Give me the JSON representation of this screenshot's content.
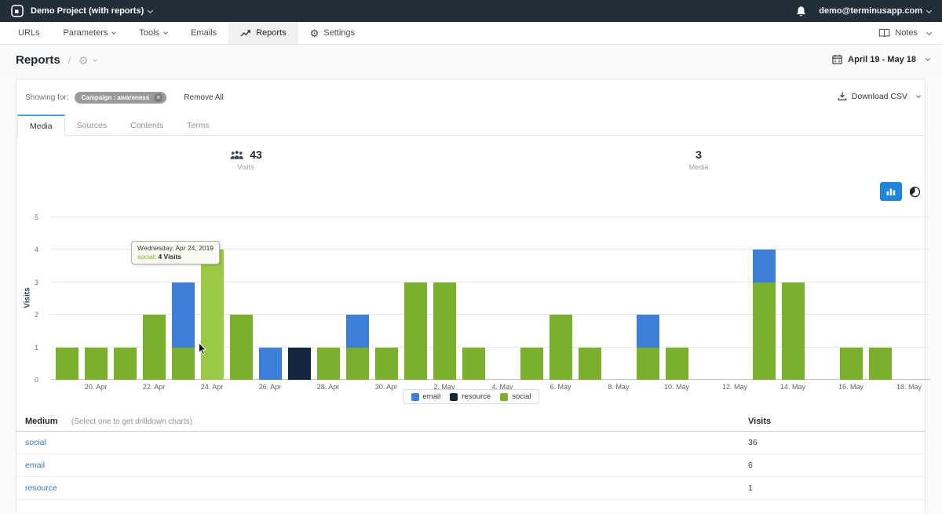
{
  "topbar": {
    "project_name": "Demo Project (with reports)",
    "account_email": "demo@terminusapp.com",
    "icons": [
      "app-logo-icon",
      "notifications-bell-icon"
    ]
  },
  "nav": {
    "items": [
      {
        "label": "URLs",
        "dropdown": false,
        "icon": null,
        "active": false
      },
      {
        "label": "Parameters",
        "dropdown": true,
        "icon": null,
        "active": false
      },
      {
        "label": "Tools",
        "dropdown": true,
        "icon": null,
        "active": false
      },
      {
        "label": "Emails",
        "dropdown": false,
        "icon": null,
        "active": false
      },
      {
        "label": "Reports",
        "dropdown": false,
        "icon": "line-chart-icon",
        "active": true
      },
      {
        "label": "Settings",
        "dropdown": false,
        "icon": "gear-icon",
        "active": false
      }
    ],
    "notes_label": "Notes",
    "notes_icon": "book-icon"
  },
  "page": {
    "title": "Reports",
    "breadcrumb_separator": "/",
    "settings_dropdown_icon": "gear-icon",
    "date_range": "April 19 - May 18",
    "date_range_icon": "calendar-icon"
  },
  "filters": {
    "showing_for_label": "Showing for:",
    "tags": [
      {
        "label": "Campaign : awareness",
        "remove_glyph": "×"
      }
    ],
    "remove_all_label": "Remove All",
    "download_csv_label": "Download CSV",
    "download_icon": "download-icon"
  },
  "tabs": [
    {
      "label": "Media",
      "active": true
    },
    {
      "label": "Sources",
      "active": false
    },
    {
      "label": "Contents",
      "active": false
    },
    {
      "label": "Terms",
      "active": false
    }
  ],
  "stats": [
    {
      "value": "43",
      "label": "Visits",
      "icon": "visitors-icon"
    },
    {
      "value": "3",
      "label": "Media",
      "icon": null
    }
  ],
  "chart_controls": {
    "bar_button_icon": "column-chart-icon",
    "bar_button_active": true,
    "pie_button_icon": "pie-chart-icon"
  },
  "tooltip": {
    "date": "Wednesday, Apr 24, 2019",
    "series": "social",
    "separator": ": ",
    "value": "4 Visits"
  },
  "chart_data": {
    "type": "bar",
    "stacked": true,
    "title": "",
    "xlabel": "",
    "ylabel": "Visits",
    "ylim": [
      0,
      5
    ],
    "yticks": [
      0,
      1,
      2,
      3,
      4,
      5
    ],
    "grid": true,
    "legend_position": "bottom",
    "x_tick_labels": [
      "20. Apr",
      "22. Apr",
      "24. Apr",
      "26. Apr",
      "28. Apr",
      "30. Apr",
      "2. May",
      "4. May",
      "6. May",
      "8. May",
      "10. May",
      "12. May",
      "14. May",
      "16. May",
      "18. May"
    ],
    "legend": [
      {
        "name": "email",
        "color": "#3b7fd8"
      },
      {
        "name": "resource",
        "color": "#13263f"
      },
      {
        "name": "social",
        "color": "#7ab02c"
      }
    ],
    "highlighted_day": "Apr 24",
    "days": [
      {
        "date": "Apr 19",
        "social": 1,
        "email": 0,
        "resource": 0
      },
      {
        "date": "Apr 20",
        "social": 1,
        "email": 0,
        "resource": 0
      },
      {
        "date": "Apr 21",
        "social": 1,
        "email": 0,
        "resource": 0
      },
      {
        "date": "Apr 22",
        "social": 2,
        "email": 0,
        "resource": 0
      },
      {
        "date": "Apr 23",
        "social": 1,
        "email": 2,
        "resource": 0
      },
      {
        "date": "Apr 24",
        "social": 4,
        "email": 0,
        "resource": 0
      },
      {
        "date": "Apr 25",
        "social": 2,
        "email": 0,
        "resource": 0
      },
      {
        "date": "Apr 26",
        "social": 0,
        "email": 1,
        "resource": 0
      },
      {
        "date": "Apr 27",
        "social": 0,
        "email": 0,
        "resource": 1
      },
      {
        "date": "Apr 28",
        "social": 1,
        "email": 0,
        "resource": 0
      },
      {
        "date": "Apr 29",
        "social": 1,
        "email": 1,
        "resource": 0
      },
      {
        "date": "Apr 30",
        "social": 1,
        "email": 0,
        "resource": 0
      },
      {
        "date": "May 1",
        "social": 3,
        "email": 0,
        "resource": 0
      },
      {
        "date": "May 2",
        "social": 3,
        "email": 0,
        "resource": 0
      },
      {
        "date": "May 3",
        "social": 1,
        "email": 0,
        "resource": 0
      },
      {
        "date": "May 4",
        "social": 0,
        "email": 0,
        "resource": 0
      },
      {
        "date": "May 5",
        "social": 1,
        "email": 0,
        "resource": 0
      },
      {
        "date": "May 6",
        "social": 2,
        "email": 0,
        "resource": 0
      },
      {
        "date": "May 7",
        "social": 1,
        "email": 0,
        "resource": 0
      },
      {
        "date": "May 8",
        "social": 0,
        "email": 0,
        "resource": 0
      },
      {
        "date": "May 9",
        "social": 1,
        "email": 1,
        "resource": 0
      },
      {
        "date": "May 10",
        "social": 1,
        "email": 0,
        "resource": 0
      },
      {
        "date": "May 11",
        "social": 0,
        "email": 0,
        "resource": 0
      },
      {
        "date": "May 12",
        "social": 0,
        "email": 0,
        "resource": 0
      },
      {
        "date": "May 13",
        "social": 3,
        "email": 1,
        "resource": 0
      },
      {
        "date": "May 14",
        "social": 3,
        "email": 0,
        "resource": 0
      },
      {
        "date": "May 15",
        "social": 0,
        "email": 0,
        "resource": 0
      },
      {
        "date": "May 16",
        "social": 1,
        "email": 0,
        "resource": 0
      },
      {
        "date": "May 17",
        "social": 1,
        "email": 0,
        "resource": 0
      },
      {
        "date": "May 18",
        "social": 0,
        "email": 0,
        "resource": 0
      }
    ]
  },
  "table": {
    "header": {
      "medium": "Medium",
      "hint": "(Select one to get drilldown charts)",
      "visits": "Visits"
    },
    "rows": [
      {
        "medium": "social",
        "visits": "36"
      },
      {
        "medium": "email",
        "visits": "6"
      },
      {
        "medium": "resource",
        "visits": "1"
      }
    ]
  },
  "colors": {
    "topbar_bg": "#232e39",
    "accent_blue": "#2086db",
    "tab_active_border": "#4a9ee8",
    "email": "#3b7fd8",
    "resource": "#13263f",
    "social": "#7ab02c",
    "social_hover": "#9aca43",
    "link_blue": "#3a77bd",
    "stat_icon_navy": "#33475b"
  }
}
